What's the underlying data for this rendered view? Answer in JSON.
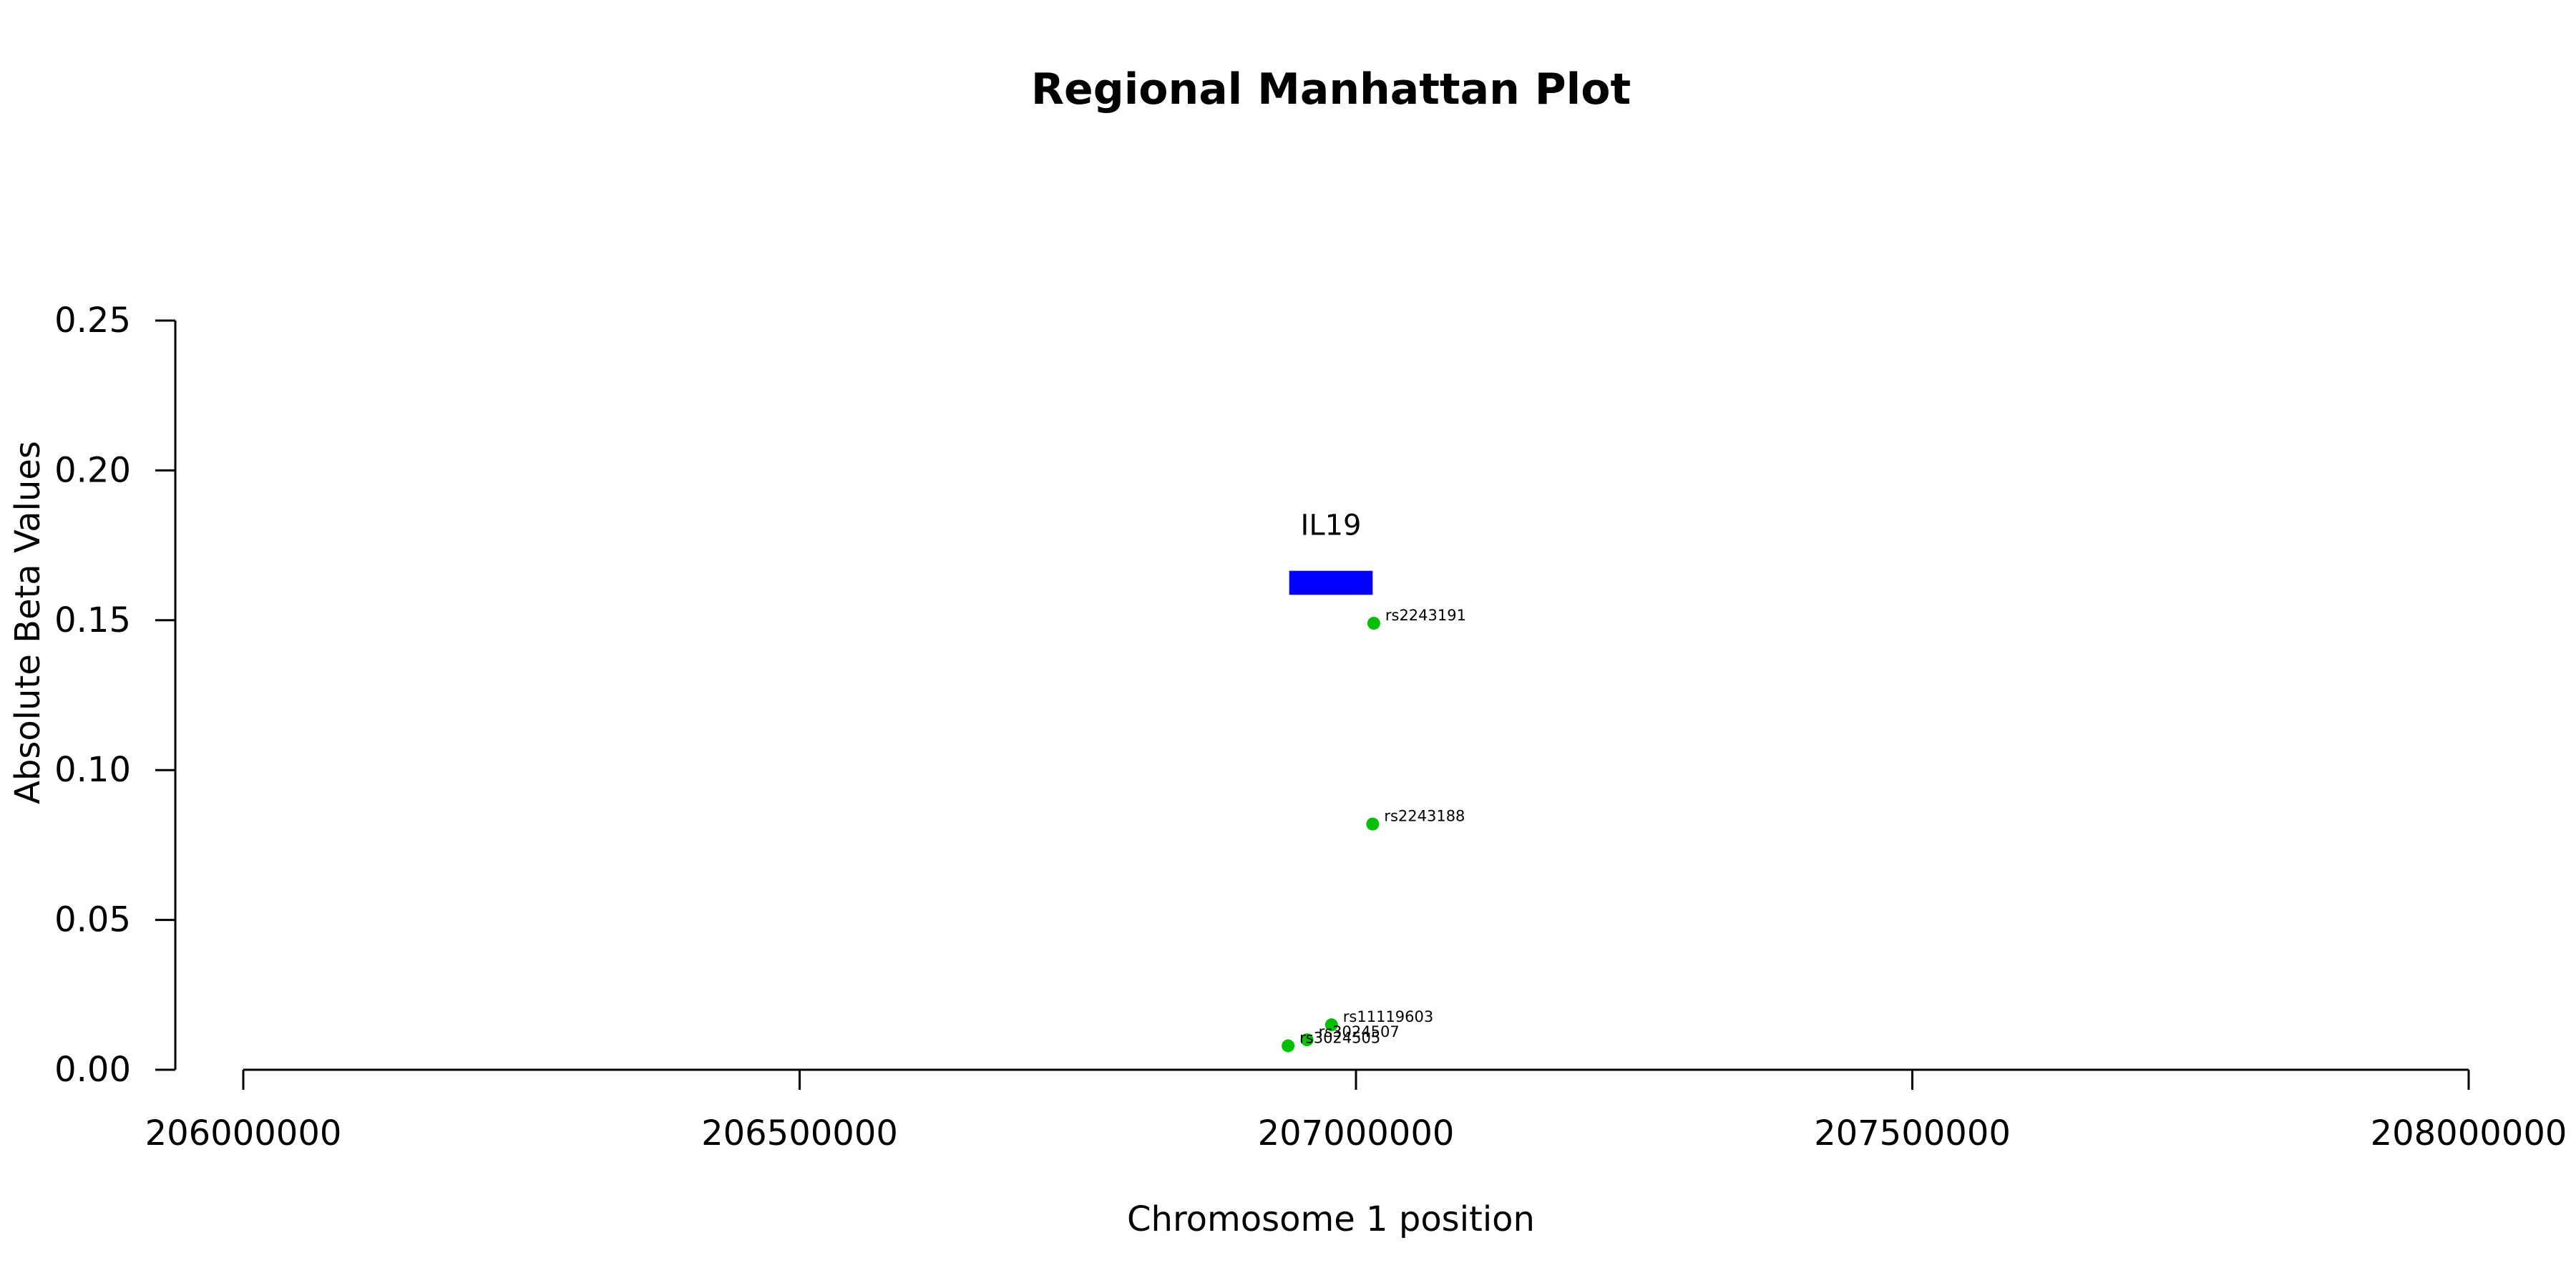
{
  "chart_data": {
    "type": "scatter",
    "title": "Regional Manhattan Plot",
    "xlabel": "Chromosome 1 position",
    "ylabel": "Absolute Beta Values",
    "xlim": [
      206000000,
      208000000
    ],
    "ylim": [
      0,
      0.25
    ],
    "xticks": [
      206000000,
      206500000,
      207000000,
      207500000,
      208000000
    ],
    "yticks": [
      0.0,
      0.05,
      0.1,
      0.15,
      0.2,
      0.25
    ],
    "ytick_labels": [
      "0.00",
      "0.05",
      "0.10",
      "0.15",
      "0.20",
      "0.25"
    ],
    "xtick_labels": [
      "206000000",
      "206500000",
      "207000000",
      "207500000",
      "208000000"
    ],
    "point_color": "#00C000",
    "gene_color": "#0000FF",
    "genes": [
      {
        "name": "IL19",
        "start": 206940000,
        "end": 207015000,
        "y": 0.1625,
        "height": 0.008
      }
    ],
    "points": [
      {
        "label": "rs2243191",
        "x": 207016000,
        "y": 0.149
      },
      {
        "label": "rs2243188",
        "x": 207015000,
        "y": 0.082
      },
      {
        "label": "rs11119603",
        "x": 206978000,
        "y": 0.015
      },
      {
        "label": "rs3024507",
        "x": 206956000,
        "y": 0.01
      },
      {
        "label": "rs3024505",
        "x": 206939000,
        "y": 0.008
      }
    ]
  }
}
